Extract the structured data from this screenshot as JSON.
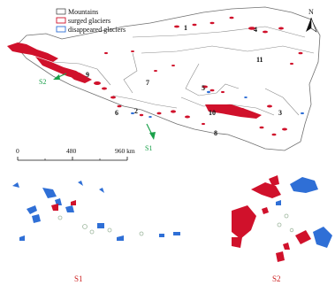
{
  "legend": {
    "mountains": "Mountains",
    "surged": "surged glaciers",
    "disappeared": "disappeared glaciers"
  },
  "north_label": "N",
  "scale_bar": {
    "ticks": [
      "0",
      "480",
      "960 km"
    ]
  },
  "region_labels": [
    "1",
    "2",
    "3",
    "4",
    "5",
    "6",
    "7",
    "8",
    "9",
    "10",
    "11"
  ],
  "inset_labels": {
    "s1": "S1",
    "s2": "S2"
  },
  "colors": {
    "surged": "#d0112b",
    "disappeared": "#2f6fd6",
    "mountains_outline": "#707070",
    "arrow": "#1aa04a",
    "label_red": "#cc1f1f",
    "faint_glacier": "#9fb89f"
  }
}
